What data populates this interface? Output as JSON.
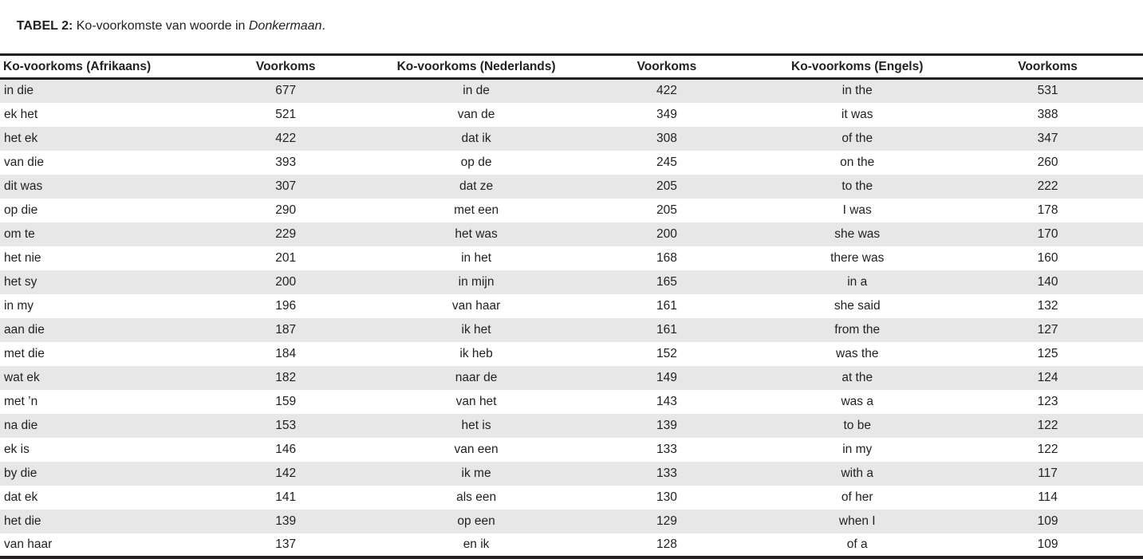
{
  "title": {
    "label": "TABEL 2:",
    "text": " Ko-voorkomste van woorde in ",
    "italic": "Donkermaan",
    "suffix": "."
  },
  "table": {
    "headers": [
      "Ko-voorkoms (Afrikaans)",
      "Voorkoms",
      "Ko-voorkoms (Nederlands)",
      "Voorkoms",
      "Ko-voorkoms (Engels)",
      "Voorkoms"
    ],
    "rows": [
      [
        "in die",
        "677",
        "in de",
        "422",
        "in the",
        "531"
      ],
      [
        "ek het",
        "521",
        "van de",
        "349",
        "it was",
        "388"
      ],
      [
        "het ek",
        "422",
        "dat ik",
        "308",
        "of the",
        "347"
      ],
      [
        "van die",
        "393",
        "op de",
        "245",
        "on the",
        "260"
      ],
      [
        "dit was",
        "307",
        "dat ze",
        "205",
        "to the",
        "222"
      ],
      [
        "op die",
        "290",
        "met een",
        "205",
        "I was",
        "178"
      ],
      [
        "om te",
        "229",
        "het was",
        "200",
        "she was",
        "170"
      ],
      [
        "het nie",
        "201",
        "in het",
        "168",
        "there was",
        "160"
      ],
      [
        "het sy",
        "200",
        "in mijn",
        "165",
        "in a",
        "140"
      ],
      [
        "in my",
        "196",
        "van haar",
        "161",
        "she said",
        "132"
      ],
      [
        "aan die",
        "187",
        "ik het",
        "161",
        "from the",
        "127"
      ],
      [
        "met die",
        "184",
        "ik heb",
        "152",
        "was the",
        "125"
      ],
      [
        "wat ek",
        "182",
        "naar de",
        "149",
        "at the",
        "124"
      ],
      [
        "met ’n",
        "159",
        "van het",
        "143",
        "was a",
        "123"
      ],
      [
        "na die",
        "153",
        "het is",
        "139",
        "to be",
        "122"
      ],
      [
        "ek is",
        "146",
        "van een",
        "133",
        "in my",
        "122"
      ],
      [
        "by die",
        "142",
        "ik me",
        "133",
        "with a",
        "117"
      ],
      [
        "dat ek",
        "141",
        "als een",
        "130",
        "of her",
        "114"
      ],
      [
        "het die",
        "139",
        "op een",
        "129",
        "when I",
        "109"
      ],
      [
        "van haar",
        "137",
        "en ik",
        "128",
        "of a",
        "109"
      ]
    ]
  },
  "colors": {
    "stripe": "#e7e7e7",
    "border": "#231f20",
    "text": "#231f20",
    "background": "#ffffff"
  }
}
